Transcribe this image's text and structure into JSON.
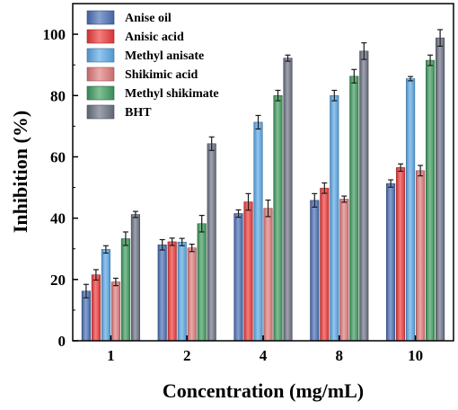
{
  "chart_data": {
    "type": "bar",
    "title": "",
    "xlabel": "Concentration (mg/mL)",
    "ylabel": "Inhibition (%)",
    "ylim": [
      0,
      110
    ],
    "yticks": [
      0,
      20,
      40,
      60,
      80,
      100
    ],
    "categories": [
      "1",
      "2",
      "4",
      "8",
      "10"
    ],
    "legend_position": "top-left",
    "grid": false,
    "error_bars": true,
    "series": [
      {
        "name": "Anise oil",
        "color": "#4a6fb5",
        "values": [
          16.2,
          31.3,
          41.5,
          45.8,
          51.3
        ],
        "errors": [
          2.2,
          1.7,
          1.2,
          2.2,
          1.2
        ]
      },
      {
        "name": "Anisic acid",
        "color": "#ee3a3a",
        "values": [
          21.5,
          32.3,
          45.3,
          49.8,
          56.5
        ],
        "errors": [
          1.7,
          1.2,
          2.7,
          1.7,
          1.2
        ]
      },
      {
        "name": "Methyl anisate",
        "color": "#5aa8e6",
        "values": [
          29.8,
          32.2,
          71.3,
          80.0,
          85.5
        ],
        "errors": [
          1.2,
          1.2,
          2.2,
          1.7,
          0.7
        ]
      },
      {
        "name": "Shikimic acid",
        "color": "#e07a7a",
        "values": [
          19.2,
          30.3,
          43.2,
          46.2,
          55.5
        ],
        "errors": [
          1.2,
          1.2,
          2.7,
          1.0,
          1.7
        ]
      },
      {
        "name": "Methyl shikimate",
        "color": "#3f9b5e",
        "values": [
          33.3,
          38.2,
          80.0,
          86.3,
          91.5
        ],
        "errors": [
          2.2,
          2.7,
          1.7,
          2.2,
          1.7
        ]
      },
      {
        "name": "BHT",
        "color": "#6b7183",
        "values": [
          41.2,
          64.3,
          92.2,
          94.5,
          98.8
        ],
        "errors": [
          1.0,
          2.2,
          1.0,
          2.7,
          2.7
        ]
      }
    ]
  }
}
